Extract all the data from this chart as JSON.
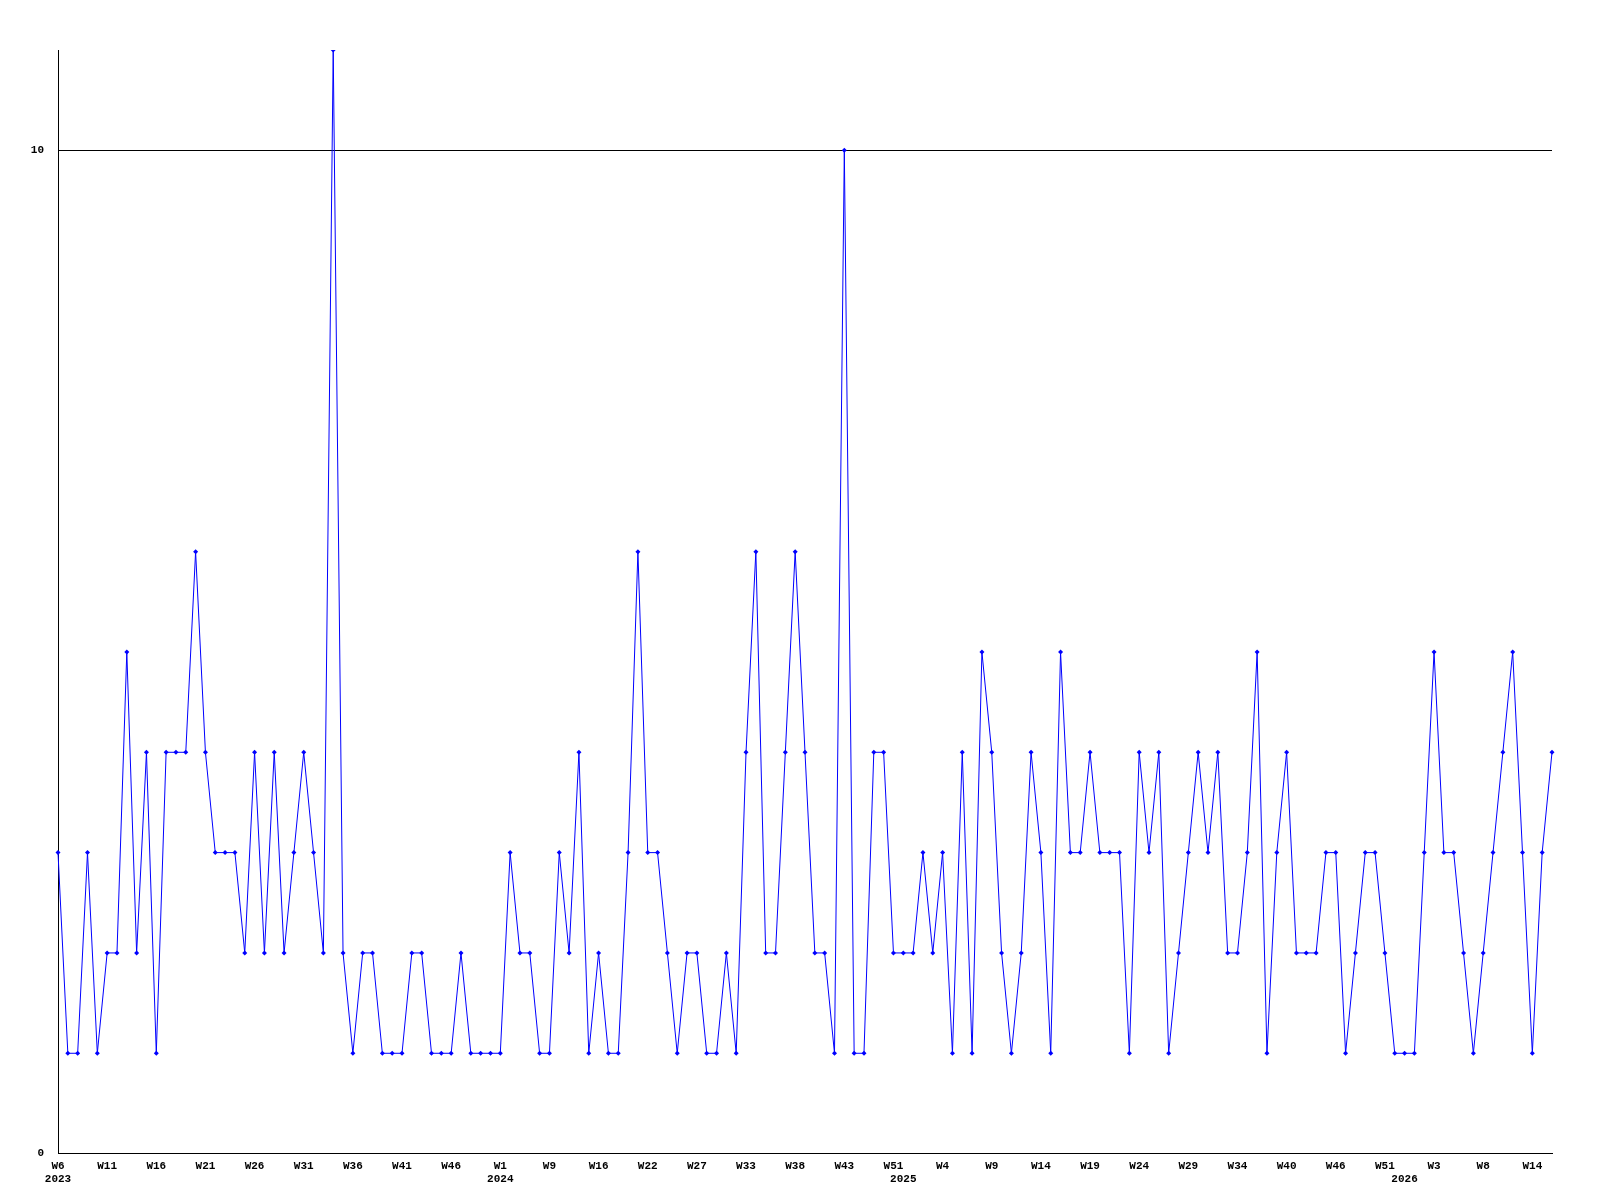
{
  "chart_data": {
    "type": "line",
    "categories": [
      "W6\n2023",
      null,
      null,
      null,
      null,
      "W11",
      null,
      null,
      null,
      null,
      "W16",
      null,
      null,
      null,
      null,
      "W21",
      null,
      null,
      null,
      null,
      "W26",
      null,
      null,
      null,
      null,
      "W31",
      null,
      null,
      null,
      null,
      "W36",
      null,
      null,
      null,
      null,
      "W41",
      null,
      null,
      null,
      null,
      "W46",
      null,
      null,
      null,
      null,
      "W1\n2024",
      null,
      null,
      null,
      null,
      "W9",
      null,
      null,
      null,
      null,
      "W16",
      null,
      null,
      null,
      null,
      "W22",
      null,
      null,
      null,
      null,
      "W27",
      null,
      null,
      null,
      null,
      "W33",
      null,
      null,
      null,
      null,
      "W38",
      null,
      null,
      null,
      null,
      "W43",
      null,
      null,
      null,
      null,
      "W51",
      "\n2025",
      null,
      null,
      null,
      "W4",
      null,
      null,
      null,
      null,
      "W9",
      null,
      null,
      null,
      null,
      "W14",
      null,
      null,
      null,
      null,
      "W19",
      null,
      null,
      null,
      null,
      "W24",
      null,
      null,
      null,
      null,
      "W29",
      null,
      null,
      null,
      null,
      "W34",
      null,
      null,
      null,
      null,
      "W40",
      null,
      null,
      null,
      null,
      "W46",
      null,
      null,
      null,
      null,
      "W51",
      null,
      "\n2026",
      null,
      null,
      "W3",
      null,
      null,
      null,
      null,
      "W8",
      null,
      null,
      null,
      null,
      "W14",
      null,
      null
    ],
    "series": [
      {
        "color": "#0000ff",
        "values": [
          3,
          1,
          1,
          3,
          1,
          2,
          2,
          5,
          2,
          4,
          1,
          4,
          4,
          4,
          6,
          4,
          3,
          3,
          3,
          2,
          4,
          2,
          4,
          2,
          3,
          4,
          3,
          2,
          11,
          2,
          1,
          2,
          2,
          1,
          1,
          1,
          2,
          2,
          1,
          1,
          1,
          2,
          1,
          1,
          1,
          1,
          3,
          2,
          2,
          1,
          1,
          3,
          2,
          4,
          1,
          2,
          1,
          1,
          3,
          6,
          3,
          3,
          2,
          1,
          2,
          2,
          1,
          1,
          2,
          1,
          4,
          6,
          2,
          2,
          4,
          6,
          4,
          2,
          2,
          1,
          10,
          1,
          1,
          4,
          4,
          2,
          2,
          2,
          3,
          2,
          3,
          1,
          4,
          1,
          5,
          4,
          2,
          1,
          2,
          4,
          3,
          1,
          5,
          3,
          3,
          4,
          3,
          3,
          3,
          1,
          4,
          3,
          4,
          1,
          2,
          3,
          4,
          3,
          4,
          2,
          2,
          3,
          5,
          1,
          3,
          4,
          2,
          2,
          2,
          3,
          3,
          1,
          2,
          3,
          3,
          2,
          1,
          1,
          1,
          3,
          5,
          3,
          3,
          2,
          1,
          2,
          3,
          4,
          5,
          3,
          1,
          3,
          4
        ]
      }
    ],
    "ylim": [
      0,
      11
    ],
    "yticks": [
      0,
      10
    ],
    "grid": "y",
    "legend": false,
    "marker": "diamond",
    "line_style": "solid"
  }
}
